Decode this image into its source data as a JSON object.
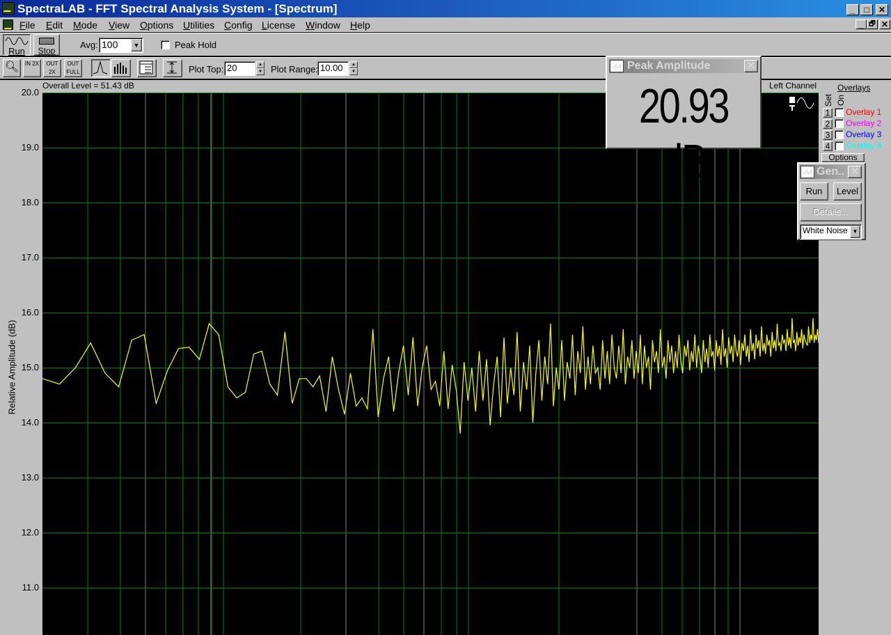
{
  "window": {
    "title": "SpectraLAB - FFT Spectral Analysis System - [Spectrum]",
    "minimize": "_",
    "maximize": "□",
    "close": "✕",
    "mdi_restore": "🗗"
  },
  "menu": [
    {
      "label": "File",
      "key": "F"
    },
    {
      "label": "Edit",
      "key": "E"
    },
    {
      "label": "Mode",
      "key": "M"
    },
    {
      "label": "View",
      "key": "V"
    },
    {
      "label": "Options",
      "key": "O"
    },
    {
      "label": "Utilities",
      "key": "U"
    },
    {
      "label": "Config",
      "key": "C"
    },
    {
      "label": "License",
      "key": "L"
    },
    {
      "label": "Window",
      "key": "W"
    },
    {
      "label": "Help",
      "key": "H"
    }
  ],
  "toolbar": {
    "run_label": "Run",
    "stop_label": "Stop",
    "avg_label": "Avg:",
    "avg_value": "100",
    "peak_hold_label": "Peak Hold",
    "peak_hold_checked": false,
    "zoom_in": "IN 2X",
    "zoom_out": "OUT 2X",
    "zoom_full": "OUT FULL",
    "plot_top_label": "Plot Top:",
    "plot_top_value": "20",
    "plot_range_label": "Plot Range:",
    "plot_range_value": "10.00"
  },
  "chart_header": {
    "overall_level": "Overall Level = 51.43 dB",
    "channel": "Left Channel"
  },
  "overlays": {
    "title": "Overlays",
    "set_label": "Set",
    "on_label": "On",
    "items": [
      {
        "num": "1",
        "label": "Overlay 1",
        "color": "#ff0000"
      },
      {
        "num": "2",
        "label": "Overlay 2",
        "color": "#ff00ff"
      },
      {
        "num": "3",
        "label": "Overlay 3",
        "color": "#0000ff"
      },
      {
        "num": "4",
        "label": "Overlay 4",
        "color": "#00ffff"
      }
    ],
    "options_label": "Options"
  },
  "peak_window": {
    "title": "Peak Amplitude",
    "value": "20.93 dB"
  },
  "gen_window": {
    "title": "Gen...",
    "run": "Run",
    "level": "Level",
    "details": "Details...",
    "signal": "White Noise"
  },
  "chart_data": {
    "type": "line",
    "ylabel": "Relative Amplitude (dB)",
    "ylim": [
      10,
      20
    ],
    "yticks": [
      "20.0",
      "19.0",
      "18.0",
      "17.0",
      "16.0",
      "15.0",
      "14.0",
      "13.0",
      "12.0",
      "11.0"
    ],
    "x_scale": "log",
    "grid": true,
    "background": "#000000",
    "grid_color": "#008000",
    "trace_color": "#ffff00",
    "series": [
      {
        "values": [
          14.8,
          14.7,
          15.0,
          15.45,
          14.9,
          14.65,
          15.5,
          15.6,
          14.35,
          14.95,
          15.35,
          15.37,
          15.15,
          15.8,
          15.6,
          14.65,
          14.45,
          14.55,
          15.25,
          15.3,
          14.7,
          14.5,
          15.65,
          14.35,
          14.8,
          14.8,
          14.65,
          14.85,
          14.2,
          15.2,
          14.6,
          14.15,
          14.9,
          14.3,
          14.45,
          14.25,
          15.7,
          14.1,
          14.8,
          15.2,
          14.2,
          14.9,
          15.4,
          14.5,
          15.55,
          14.3,
          15.0,
          15.4,
          14.6,
          14.75,
          14.3,
          15.3,
          14.25,
          15.05,
          14.6,
          13.8,
          15.1,
          14.4,
          15.0,
          14.2,
          15.3,
          14.4,
          15.15,
          13.95,
          14.7,
          15.2,
          14.1,
          15.55,
          14.35,
          15.0,
          14.5,
          15.65,
          14.2,
          15.1,
          14.6,
          15.4,
          14.0,
          14.9,
          15.5,
          14.4,
          15.2,
          14.7,
          15.8,
          14.3,
          15.0,
          14.6,
          15.5,
          14.4,
          15.1,
          14.8,
          15.6,
          14.5,
          15.3,
          14.9,
          15.75,
          14.6,
          15.2,
          14.7,
          15.4,
          14.9,
          15.0,
          14.6,
          15.5,
          14.8,
          15.3,
          14.7,
          15.6,
          15.0,
          14.8,
          15.4,
          14.9,
          15.7,
          14.7,
          15.2,
          15.0,
          15.5,
          14.8,
          15.3,
          14.9,
          15.6,
          14.7,
          15.4,
          15.0,
          15.2,
          14.6,
          15.5,
          15.1,
          15.3,
          14.9,
          15.7,
          15.0,
          15.2,
          14.8,
          15.5,
          15.1,
          15.4,
          14.9,
          15.3,
          15.0,
          15.6,
          15.1,
          14.9,
          15.4,
          15.2,
          15.5,
          14.95,
          15.3,
          15.1,
          15.6,
          15.0,
          15.4,
          15.2,
          14.9,
          15.5,
          15.1,
          15.35,
          15.0,
          15.6,
          15.2,
          15.3,
          14.95,
          15.5,
          15.2,
          15.4,
          15.05,
          15.7,
          15.2,
          15.35,
          15.0,
          15.55,
          15.25,
          15.4,
          15.1,
          15.6,
          15.3,
          15.2,
          15.5,
          15.05,
          15.45,
          15.3,
          15.6,
          15.2,
          15.4,
          15.1,
          15.7,
          15.3,
          15.45,
          15.15,
          15.6,
          15.35,
          15.5,
          15.2,
          15.75,
          15.3,
          15.45,
          15.25,
          15.6,
          15.4,
          15.5,
          15.2,
          15.65,
          15.35,
          15.5,
          15.3,
          15.8,
          15.4,
          15.45,
          15.3,
          15.6,
          15.45,
          15.5,
          15.3,
          15.7,
          15.4,
          15.55,
          15.35,
          15.9,
          15.45,
          15.5,
          15.3,
          15.65,
          15.4,
          15.55,
          15.45,
          15.7,
          15.35,
          15.6,
          15.5,
          15.45,
          15.4,
          15.75,
          15.45,
          15.6,
          15.5,
          15.9,
          15.45,
          15.6,
          15.5,
          15.7,
          15.45
        ]
      }
    ]
  }
}
